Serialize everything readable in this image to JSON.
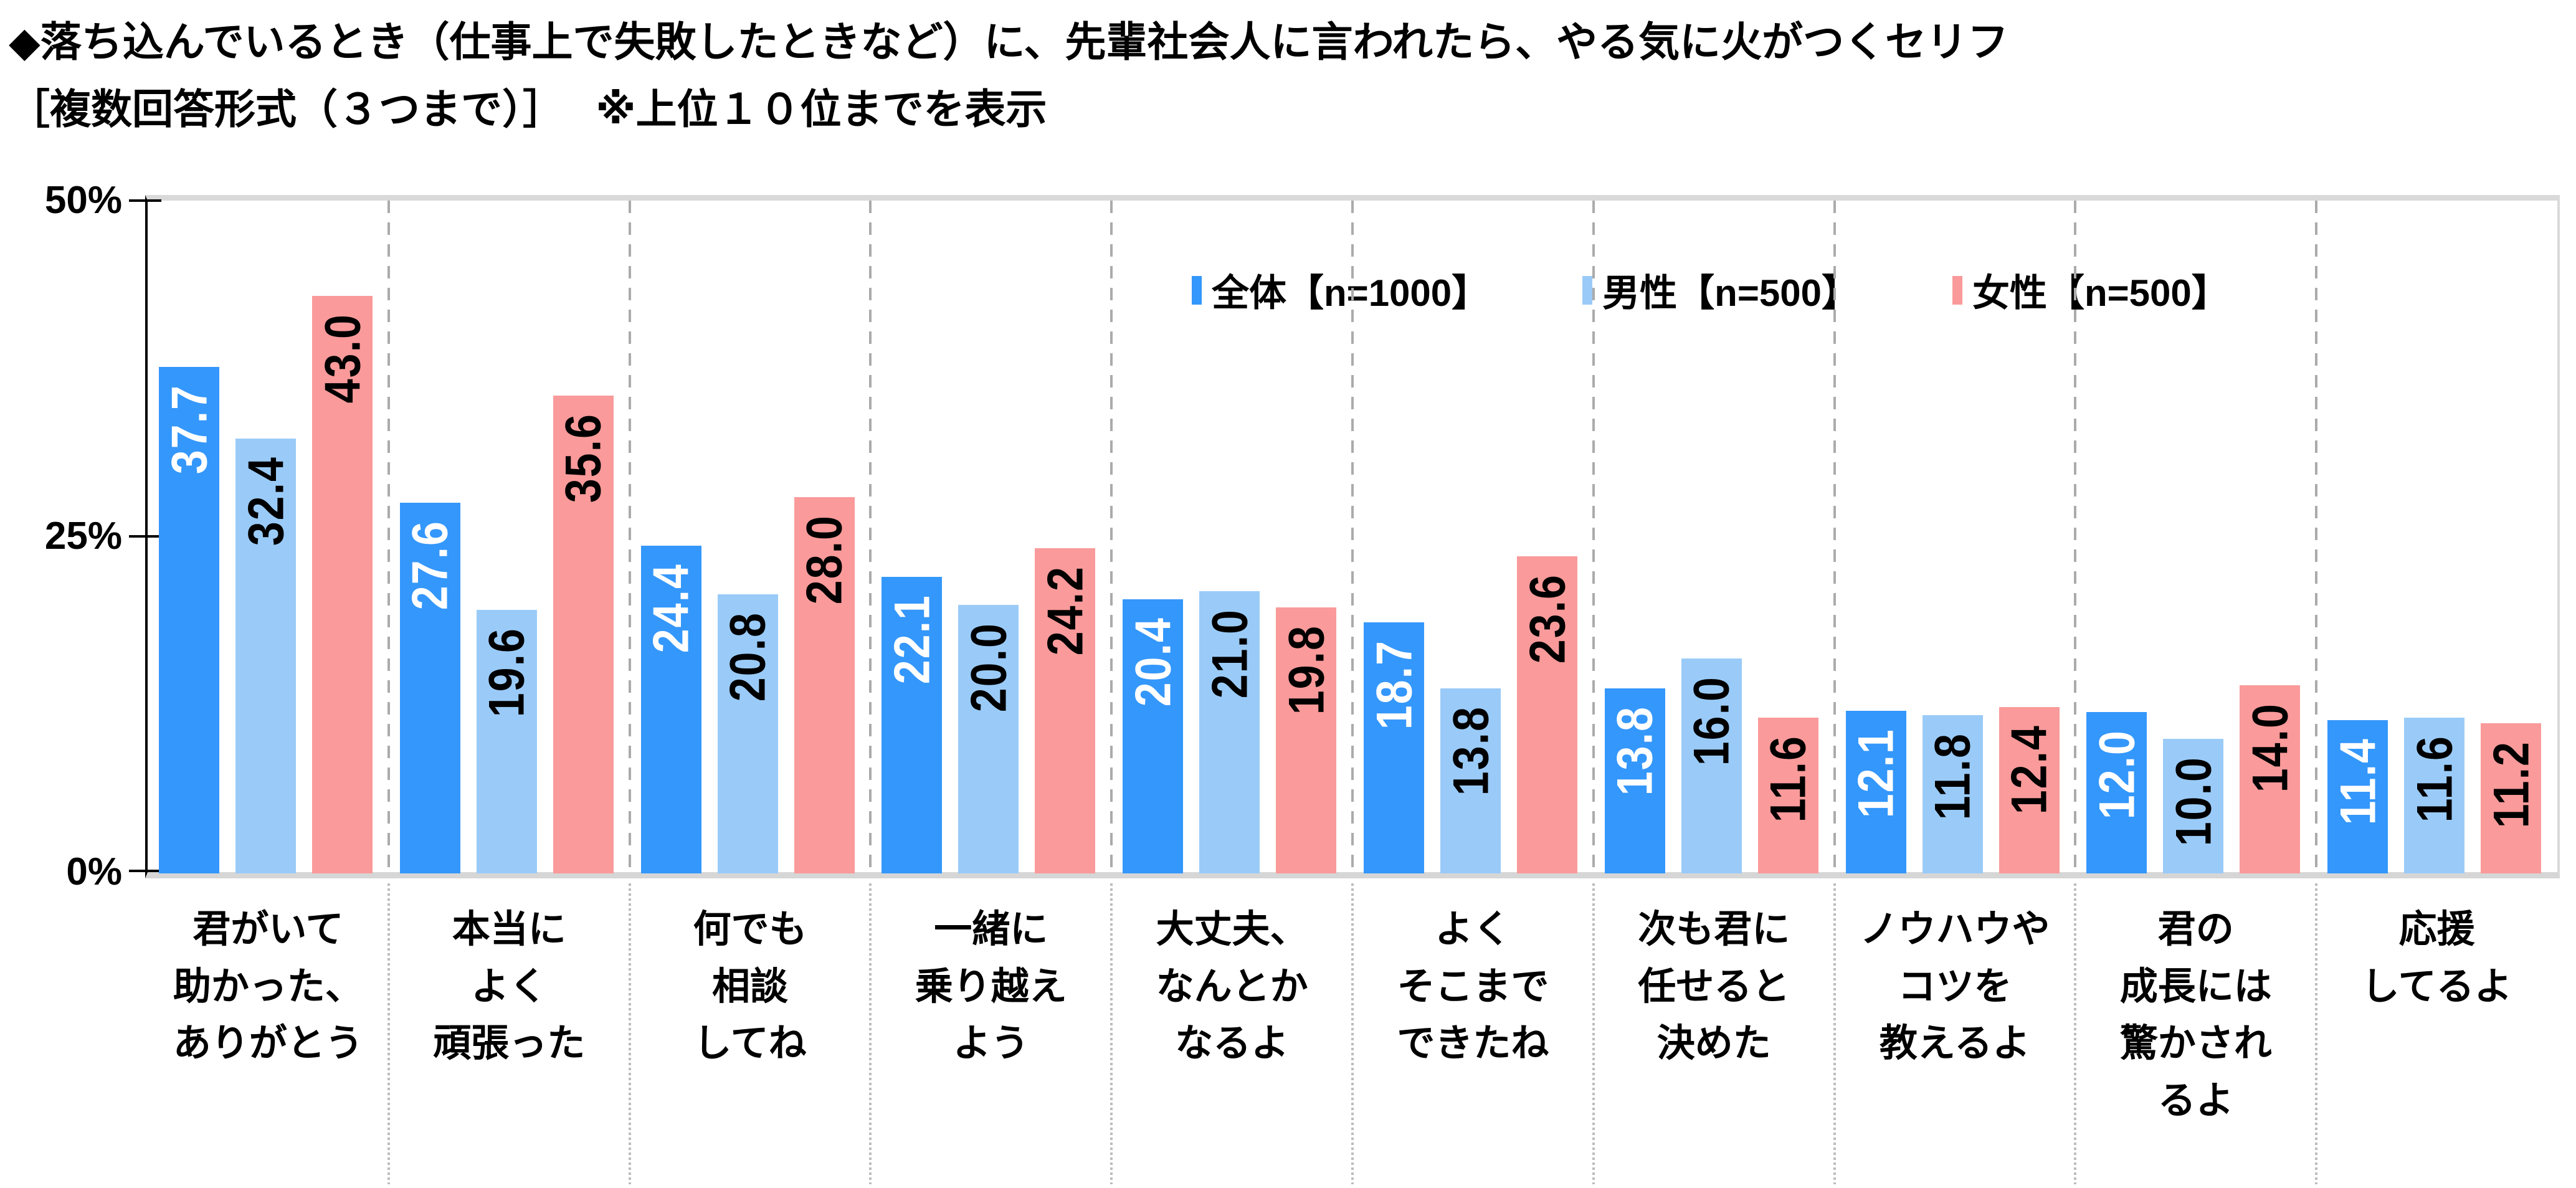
{
  "title_line1": "◆落ち込んでいるとき（仕事上で失敗したときなど）に、先輩社会人に言われたら、やる気に火がつくセリフ",
  "title_line2": "［複数回答形式（３つまで）］　 ※上位１０位までを表示",
  "y_axis": {
    "ticks": [
      "50%",
      "25%",
      "0%"
    ],
    "max_label": "50%",
    "mid_label": "25%",
    "min_label": "0%"
  },
  "chart_data": {
    "type": "bar",
    "title": "落ち込んでいるとき（仕事上で失敗したときなど）に、先輩社会人に言われたら、やる気に火がつくセリフ",
    "subtitle": "［複数回答形式（３つまで）］ ※上位１０位までを表示",
    "ylim": [
      0,
      50
    ],
    "y_ticks_pct": [
      0,
      25,
      50
    ],
    "grid": "vertical-dashed-category-separators",
    "legend_position": "top-right-inside",
    "value_label_format": "one-decimal",
    "value_label_rotation": -90,
    "categories": [
      "君がいて\n助かった、\nありがとう",
      "本当に\nよく\n頑張った",
      "何でも\n相談\nしてね",
      "一緒に\n乗り越え\nよう",
      "大丈夫、\nなんとか\nなるよ",
      "よく\nそこまで\nできたね",
      "次も君に\n任せると\n決めた",
      "ノウハウや\nコツを\n教えるよ",
      "君の\n成長には\n驚かされ\nるよ",
      "応援\nしてるよ"
    ],
    "series": [
      {
        "name": "全体【n=1000】",
        "color": "#3497FB",
        "label_color": "#FFFFFF",
        "values": [
          37.7,
          27.6,
          24.4,
          22.1,
          20.4,
          18.7,
          13.8,
          12.1,
          12.0,
          11.4
        ]
      },
      {
        "name": "男性【n=500】",
        "color": "#9ACBF8",
        "label_color": "#000000",
        "values": [
          32.4,
          19.6,
          20.8,
          20.0,
          21.0,
          13.8,
          16.0,
          11.8,
          10.0,
          11.6
        ]
      },
      {
        "name": "女性【n=500】",
        "color": "#FA9A9A",
        "label_color": "#000000",
        "values": [
          43.0,
          35.6,
          28.0,
          24.2,
          19.8,
          23.6,
          11.6,
          12.4,
          14.0,
          11.2
        ]
      }
    ]
  },
  "style_colors": {
    "plot_border": "#D9D9D9",
    "axis_line": "#000000",
    "category_separator_dash": "#ABABAB",
    "label_area_separator": "#BDBDBD"
  }
}
